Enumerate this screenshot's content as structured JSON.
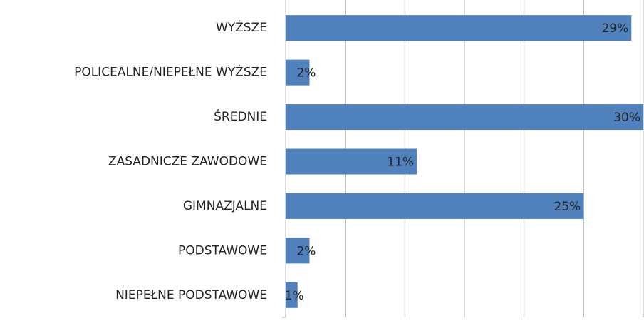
{
  "chart_data": {
    "type": "hbar",
    "categories": [
      "WYŻSZE",
      "POLICEALNE/NIEPEŁNE WYŻSZE",
      "ŚREDNIE",
      "ZASADNICZE ZAWODOWE",
      "GIMNAZJALNE",
      "PODSTAWOWE",
      "NIEPEŁNE PODSTAWOWE"
    ],
    "values": [
      29,
      2,
      30,
      11,
      25,
      2,
      1
    ],
    "value_labels": [
      "29%",
      "2%",
      "30%",
      "11%",
      "25%",
      "2%",
      "1%"
    ],
    "color": "#4f81bd",
    "xlim": [
      0,
      30
    ],
    "xticks": [
      0,
      5,
      10,
      15,
      20,
      25,
      30
    ],
    "grid": true
  }
}
